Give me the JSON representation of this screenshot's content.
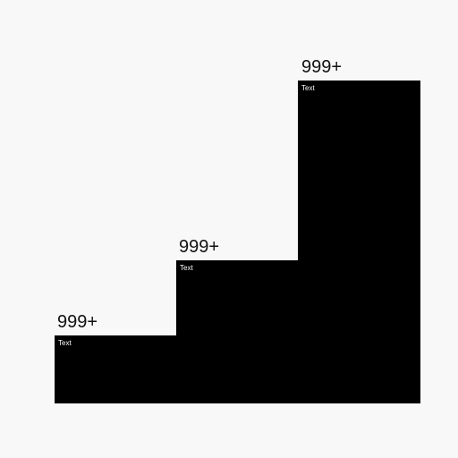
{
  "steps": [
    {
      "value": "999+",
      "label": "Text"
    },
    {
      "value": "999+",
      "label": "Text"
    },
    {
      "value": "999+",
      "label": "Text"
    }
  ],
  "colors": {
    "background": "#f8f8f8",
    "step_fill": "#000000",
    "value_text": "#111111",
    "label_text": "#ffffff"
  }
}
